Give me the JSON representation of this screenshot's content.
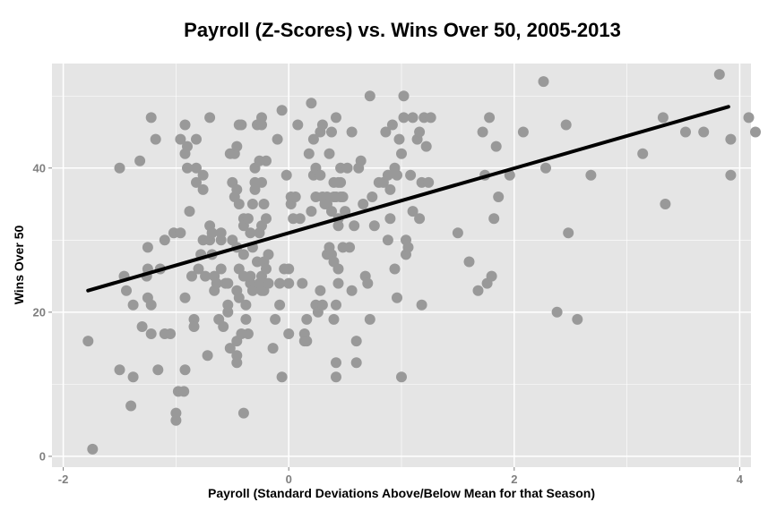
{
  "chart_data": {
    "type": "scatter",
    "title": "Payroll (Z-Scores) vs. Wins Over 50, 2005-2013",
    "xlabel": "Payroll (Standard Deviations Above/Below Mean for that Season)",
    "ylabel": "Wins Over 50",
    "xlim": [
      -2.1,
      4.1
    ],
    "ylim": [
      -1.5,
      54.5
    ],
    "x_ticks": [
      -2,
      0,
      2,
      4
    ],
    "x_tick_labels": [
      "-2",
      "0",
      "2",
      "4"
    ],
    "y_ticks": [
      0,
      20,
      40
    ],
    "y_tick_labels": [
      "0",
      "20",
      "40"
    ],
    "grid": true,
    "colors": {
      "panel": "#e5e5e5",
      "grid": "#ffffff",
      "point": "#999999",
      "line": "#000000"
    },
    "trend_line": {
      "x": [
        -1.78,
        3.9
      ],
      "y": [
        23,
        48.5
      ]
    },
    "points": [
      [
        -1.78,
        16
      ],
      [
        -1.74,
        1
      ],
      [
        -1.5,
        40
      ],
      [
        -1.5,
        12
      ],
      [
        -1.46,
        25
      ],
      [
        -1.44,
        23
      ],
      [
        -1.4,
        7
      ],
      [
        -1.38,
        11
      ],
      [
        -1.38,
        21
      ],
      [
        -1.32,
        41
      ],
      [
        -1.3,
        18
      ],
      [
        -1.26,
        25
      ],
      [
        -1.25,
        29
      ],
      [
        -1.25,
        26
      ],
      [
        -1.25,
        22
      ],
      [
        -1.22,
        47
      ],
      [
        -1.22,
        21
      ],
      [
        -1.22,
        17
      ],
      [
        -1.18,
        44
      ],
      [
        -1.16,
        12
      ],
      [
        -1.14,
        26
      ],
      [
        -1.1,
        30
      ],
      [
        -1.1,
        17
      ],
      [
        -1.02,
        31
      ],
      [
        -0.96,
        31
      ],
      [
        -1.05,
        17
      ],
      [
        -0.98,
        9
      ],
      [
        -0.93,
        9
      ],
      [
        -1.0,
        6
      ],
      [
        -1.0,
        5
      ],
      [
        -0.96,
        44
      ],
      [
        -0.92,
        46
      ],
      [
        -0.92,
        42
      ],
      [
        -0.9,
        43
      ],
      [
        -0.9,
        40
      ],
      [
        -0.92,
        22
      ],
      [
        -0.92,
        12
      ],
      [
        -0.88,
        34
      ],
      [
        -0.86,
        25
      ],
      [
        -0.84,
        19
      ],
      [
        -0.84,
        18
      ],
      [
        -0.82,
        44
      ],
      [
        -0.82,
        40
      ],
      [
        -0.82,
        38
      ],
      [
        -0.8,
        26
      ],
      [
        -0.78,
        28
      ],
      [
        -0.76,
        39
      ],
      [
        -0.76,
        37
      ],
      [
        -0.76,
        30
      ],
      [
        -0.74,
        25
      ],
      [
        -0.72,
        14
      ],
      [
        -0.7,
        47
      ],
      [
        -0.7,
        30
      ],
      [
        -0.7,
        32
      ],
      [
        -0.68,
        31
      ],
      [
        -0.68,
        28
      ],
      [
        -0.66,
        25
      ],
      [
        -0.66,
        23
      ],
      [
        -0.64,
        24
      ],
      [
        -0.62,
        19
      ],
      [
        -0.6,
        31
      ],
      [
        -0.6,
        30
      ],
      [
        -0.6,
        26
      ],
      [
        -0.58,
        18
      ],
      [
        -0.56,
        24
      ],
      [
        -0.54,
        21
      ],
      [
        -0.54,
        20
      ],
      [
        -0.54,
        24
      ],
      [
        -0.52,
        42
      ],
      [
        -0.52,
        15
      ],
      [
        -0.5,
        38
      ],
      [
        -0.5,
        30
      ],
      [
        -0.48,
        42
      ],
      [
        -0.48,
        36
      ],
      [
        -0.46,
        43
      ],
      [
        -0.46,
        37
      ],
      [
        -0.46,
        29
      ],
      [
        -0.46,
        23
      ],
      [
        -0.46,
        16
      ],
      [
        -0.46,
        14
      ],
      [
        -0.46,
        13
      ],
      [
        -0.44,
        46
      ],
      [
        -0.44,
        35
      ],
      [
        -0.44,
        26
      ],
      [
        -0.44,
        22
      ],
      [
        -0.42,
        46
      ],
      [
        -0.42,
        17
      ],
      [
        -0.4,
        33
      ],
      [
        -0.4,
        32
      ],
      [
        -0.4,
        28
      ],
      [
        -0.4,
        25
      ],
      [
        -0.4,
        6
      ],
      [
        -0.38,
        19
      ],
      [
        -0.38,
        21
      ],
      [
        -0.36,
        17
      ],
      [
        -0.36,
        33
      ],
      [
        -0.34,
        31
      ],
      [
        -0.34,
        24
      ],
      [
        -0.34,
        25
      ],
      [
        -0.32,
        23
      ],
      [
        -0.32,
        35
      ],
      [
        -0.32,
        29
      ],
      [
        -0.3,
        40
      ],
      [
        -0.3,
        38
      ],
      [
        -0.3,
        37
      ],
      [
        -0.28,
        46
      ],
      [
        -0.28,
        27
      ],
      [
        -0.26,
        41
      ],
      [
        -0.26,
        31
      ],
      [
        -0.26,
        24
      ],
      [
        -0.24,
        47
      ],
      [
        -0.24,
        46
      ],
      [
        -0.24,
        38
      ],
      [
        -0.24,
        32
      ],
      [
        -0.24,
        25
      ],
      [
        -0.24,
        23
      ],
      [
        -0.22,
        35
      ],
      [
        -0.22,
        27
      ],
      [
        -0.22,
        23
      ],
      [
        -0.2,
        41
      ],
      [
        -0.2,
        33
      ],
      [
        -0.2,
        26
      ],
      [
        -0.18,
        28
      ],
      [
        -0.18,
        24
      ],
      [
        -0.14,
        15
      ],
      [
        -0.12,
        19
      ],
      [
        -0.1,
        44
      ],
      [
        -0.08,
        21
      ],
      [
        -0.08,
        24
      ],
      [
        -0.06,
        48
      ],
      [
        -0.06,
        11
      ],
      [
        -0.04,
        26
      ],
      [
        -0.02,
        39
      ],
      [
        0.0,
        26
      ],
      [
        0.0,
        24
      ],
      [
        0.0,
        17
      ],
      [
        0.02,
        36
      ],
      [
        0.02,
        35
      ],
      [
        0.04,
        33
      ],
      [
        0.06,
        36
      ],
      [
        0.08,
        46
      ],
      [
        0.1,
        33
      ],
      [
        0.12,
        24
      ],
      [
        0.14,
        17
      ],
      [
        0.14,
        16
      ],
      [
        0.16,
        16
      ],
      [
        0.16,
        19
      ],
      [
        0.18,
        42
      ],
      [
        0.2,
        49
      ],
      [
        0.2,
        34
      ],
      [
        0.22,
        44
      ],
      [
        0.22,
        39
      ],
      [
        0.24,
        40
      ],
      [
        0.24,
        36
      ],
      [
        0.24,
        21
      ],
      [
        0.26,
        20
      ],
      [
        0.28,
        45
      ],
      [
        0.28,
        39
      ],
      [
        0.28,
        23
      ],
      [
        0.3,
        46
      ],
      [
        0.3,
        36
      ],
      [
        0.3,
        21
      ],
      [
        0.32,
        35
      ],
      [
        0.34,
        36
      ],
      [
        0.34,
        35
      ],
      [
        0.34,
        28
      ],
      [
        0.36,
        42
      ],
      [
        0.36,
        29
      ],
      [
        0.38,
        45
      ],
      [
        0.38,
        34
      ],
      [
        0.38,
        28
      ],
      [
        0.4,
        38
      ],
      [
        0.4,
        36
      ],
      [
        0.4,
        27
      ],
      [
        0.4,
        19
      ],
      [
        0.42,
        47
      ],
      [
        0.42,
        36
      ],
      [
        0.42,
        21
      ],
      [
        0.42,
        13
      ],
      [
        0.42,
        11
      ],
      [
        0.44,
        38
      ],
      [
        0.44,
        33
      ],
      [
        0.44,
        32
      ],
      [
        0.44,
        26
      ],
      [
        0.44,
        24
      ],
      [
        0.46,
        40
      ],
      [
        0.46,
        38
      ],
      [
        0.46,
        36
      ],
      [
        0.48,
        36
      ],
      [
        0.48,
        29
      ],
      [
        0.5,
        34
      ],
      [
        0.52,
        40
      ],
      [
        0.54,
        29
      ],
      [
        0.56,
        45
      ],
      [
        0.56,
        23
      ],
      [
        0.58,
        32
      ],
      [
        0.6,
        13
      ],
      [
        0.6,
        16
      ],
      [
        0.62,
        40
      ],
      [
        0.64,
        41
      ],
      [
        0.66,
        35
      ],
      [
        0.68,
        25
      ],
      [
        0.7,
        24
      ],
      [
        0.72,
        19
      ],
      [
        0.72,
        50
      ],
      [
        0.74,
        36
      ],
      [
        0.76,
        32
      ],
      [
        0.8,
        38
      ],
      [
        0.84,
        38
      ],
      [
        0.86,
        45
      ],
      [
        0.88,
        39
      ],
      [
        0.88,
        30
      ],
      [
        0.9,
        33
      ],
      [
        0.9,
        37
      ],
      [
        0.92,
        46
      ],
      [
        0.94,
        40
      ],
      [
        0.94,
        26
      ],
      [
        0.96,
        39
      ],
      [
        0.96,
        22
      ],
      [
        0.98,
        44
      ],
      [
        1.0,
        42
      ],
      [
        1.0,
        11
      ],
      [
        1.02,
        50
      ],
      [
        1.02,
        47
      ],
      [
        1.04,
        30
      ],
      [
        1.04,
        28
      ],
      [
        1.06,
        29
      ],
      [
        1.08,
        39
      ],
      [
        1.1,
        47
      ],
      [
        1.1,
        34
      ],
      [
        1.14,
        44
      ],
      [
        1.16,
        45
      ],
      [
        1.16,
        33
      ],
      [
        1.18,
        38
      ],
      [
        1.18,
        21
      ],
      [
        1.2,
        47
      ],
      [
        1.22,
        43
      ],
      [
        1.24,
        38
      ],
      [
        1.26,
        47
      ],
      [
        1.5,
        31
      ],
      [
        1.6,
        27
      ],
      [
        1.68,
        23
      ],
      [
        1.72,
        45
      ],
      [
        1.74,
        39
      ],
      [
        1.76,
        24
      ],
      [
        1.78,
        47
      ],
      [
        1.8,
        25
      ],
      [
        1.82,
        33
      ],
      [
        1.84,
        43
      ],
      [
        1.86,
        36
      ],
      [
        1.96,
        39
      ],
      [
        2.08,
        45
      ],
      [
        2.26,
        52
      ],
      [
        2.28,
        40
      ],
      [
        2.38,
        20
      ],
      [
        2.46,
        46
      ],
      [
        2.48,
        31
      ],
      [
        2.56,
        19
      ],
      [
        2.68,
        39
      ],
      [
        3.14,
        42
      ],
      [
        3.32,
        47
      ],
      [
        3.34,
        35
      ],
      [
        3.52,
        45
      ],
      [
        3.68,
        45
      ],
      [
        3.82,
        53
      ],
      [
        3.92,
        44
      ],
      [
        3.92,
        39
      ],
      [
        4.08,
        47
      ],
      [
        4.14,
        45
      ]
    ]
  }
}
